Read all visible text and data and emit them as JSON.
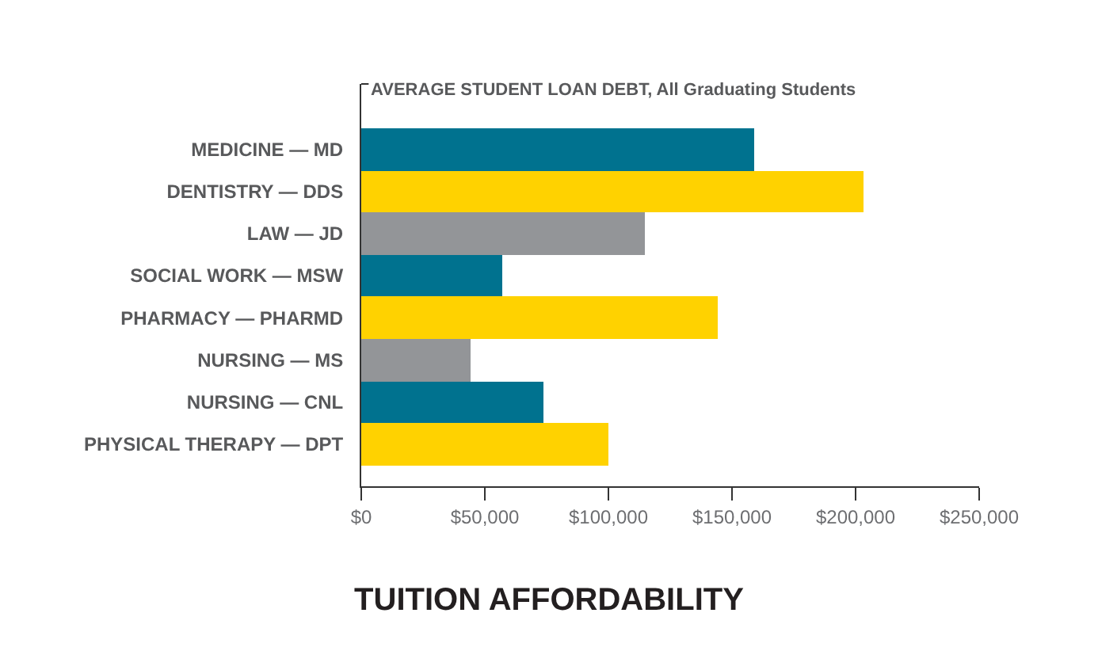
{
  "chart_data": {
    "type": "bar",
    "orientation": "horizontal",
    "title": "TUITION AFFORDABILITY",
    "subtitle": "AVERAGE STUDENT LOAN DEBT, All Graduating Students",
    "categories": [
      "MEDICINE — MD",
      "DENTISTRY — DDS",
      "LAW — JD",
      "SOCIAL WORK — MSW",
      "PHARMACY — PHARMD",
      "NURSING — MS",
      "NURSING — CNL",
      "PHYSICAL THERAPY — DPT"
    ],
    "values": [
      159000,
      203000,
      115000,
      57000,
      144000,
      44000,
      74000,
      100000
    ],
    "colors": [
      "#00728f",
      "#ffd200",
      "#939598",
      "#00728f",
      "#ffd200",
      "#939598",
      "#00728f",
      "#ffd200"
    ],
    "xlim": [
      0,
      250000
    ],
    "xticks": [
      {
        "value": 0,
        "label": "$0"
      },
      {
        "value": 50000,
        "label": "$50,000"
      },
      {
        "value": 100000,
        "label": "$100,000"
      },
      {
        "value": 150000,
        "label": "$150,000"
      },
      {
        "value": 200000,
        "label": "$200,000"
      },
      {
        "value": 250000,
        "label": "$250,000"
      }
    ],
    "grid": false
  }
}
